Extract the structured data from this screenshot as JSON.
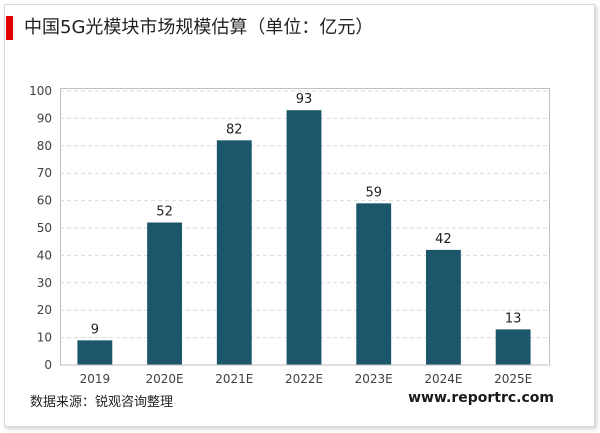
{
  "title": "中国5G光模块市场规模估算（单位：亿元）",
  "source": "数据来源：锐观咨询整理",
  "website": "www.reportrc.com",
  "colors": {
    "bar": "#1b566b",
    "accent": "#e10000",
    "grid": "#d9d9d9",
    "axis": "#bfbfbf"
  },
  "chart_data": {
    "type": "bar",
    "title": "中国5G光模块市场规模估算（单位：亿元）",
    "xlabel": "",
    "ylabel": "",
    "categories": [
      "2019",
      "2020E",
      "2021E",
      "2022E",
      "2023E",
      "2024E",
      "2025E"
    ],
    "values": [
      9,
      52,
      82,
      93,
      59,
      42,
      13
    ],
    "ylim": [
      0,
      100
    ],
    "yticks": [
      0,
      10,
      20,
      30,
      40,
      50,
      60,
      70,
      80,
      90,
      100
    ],
    "grid": "horizontal dashed",
    "legend": "none",
    "data_labels": true
  }
}
